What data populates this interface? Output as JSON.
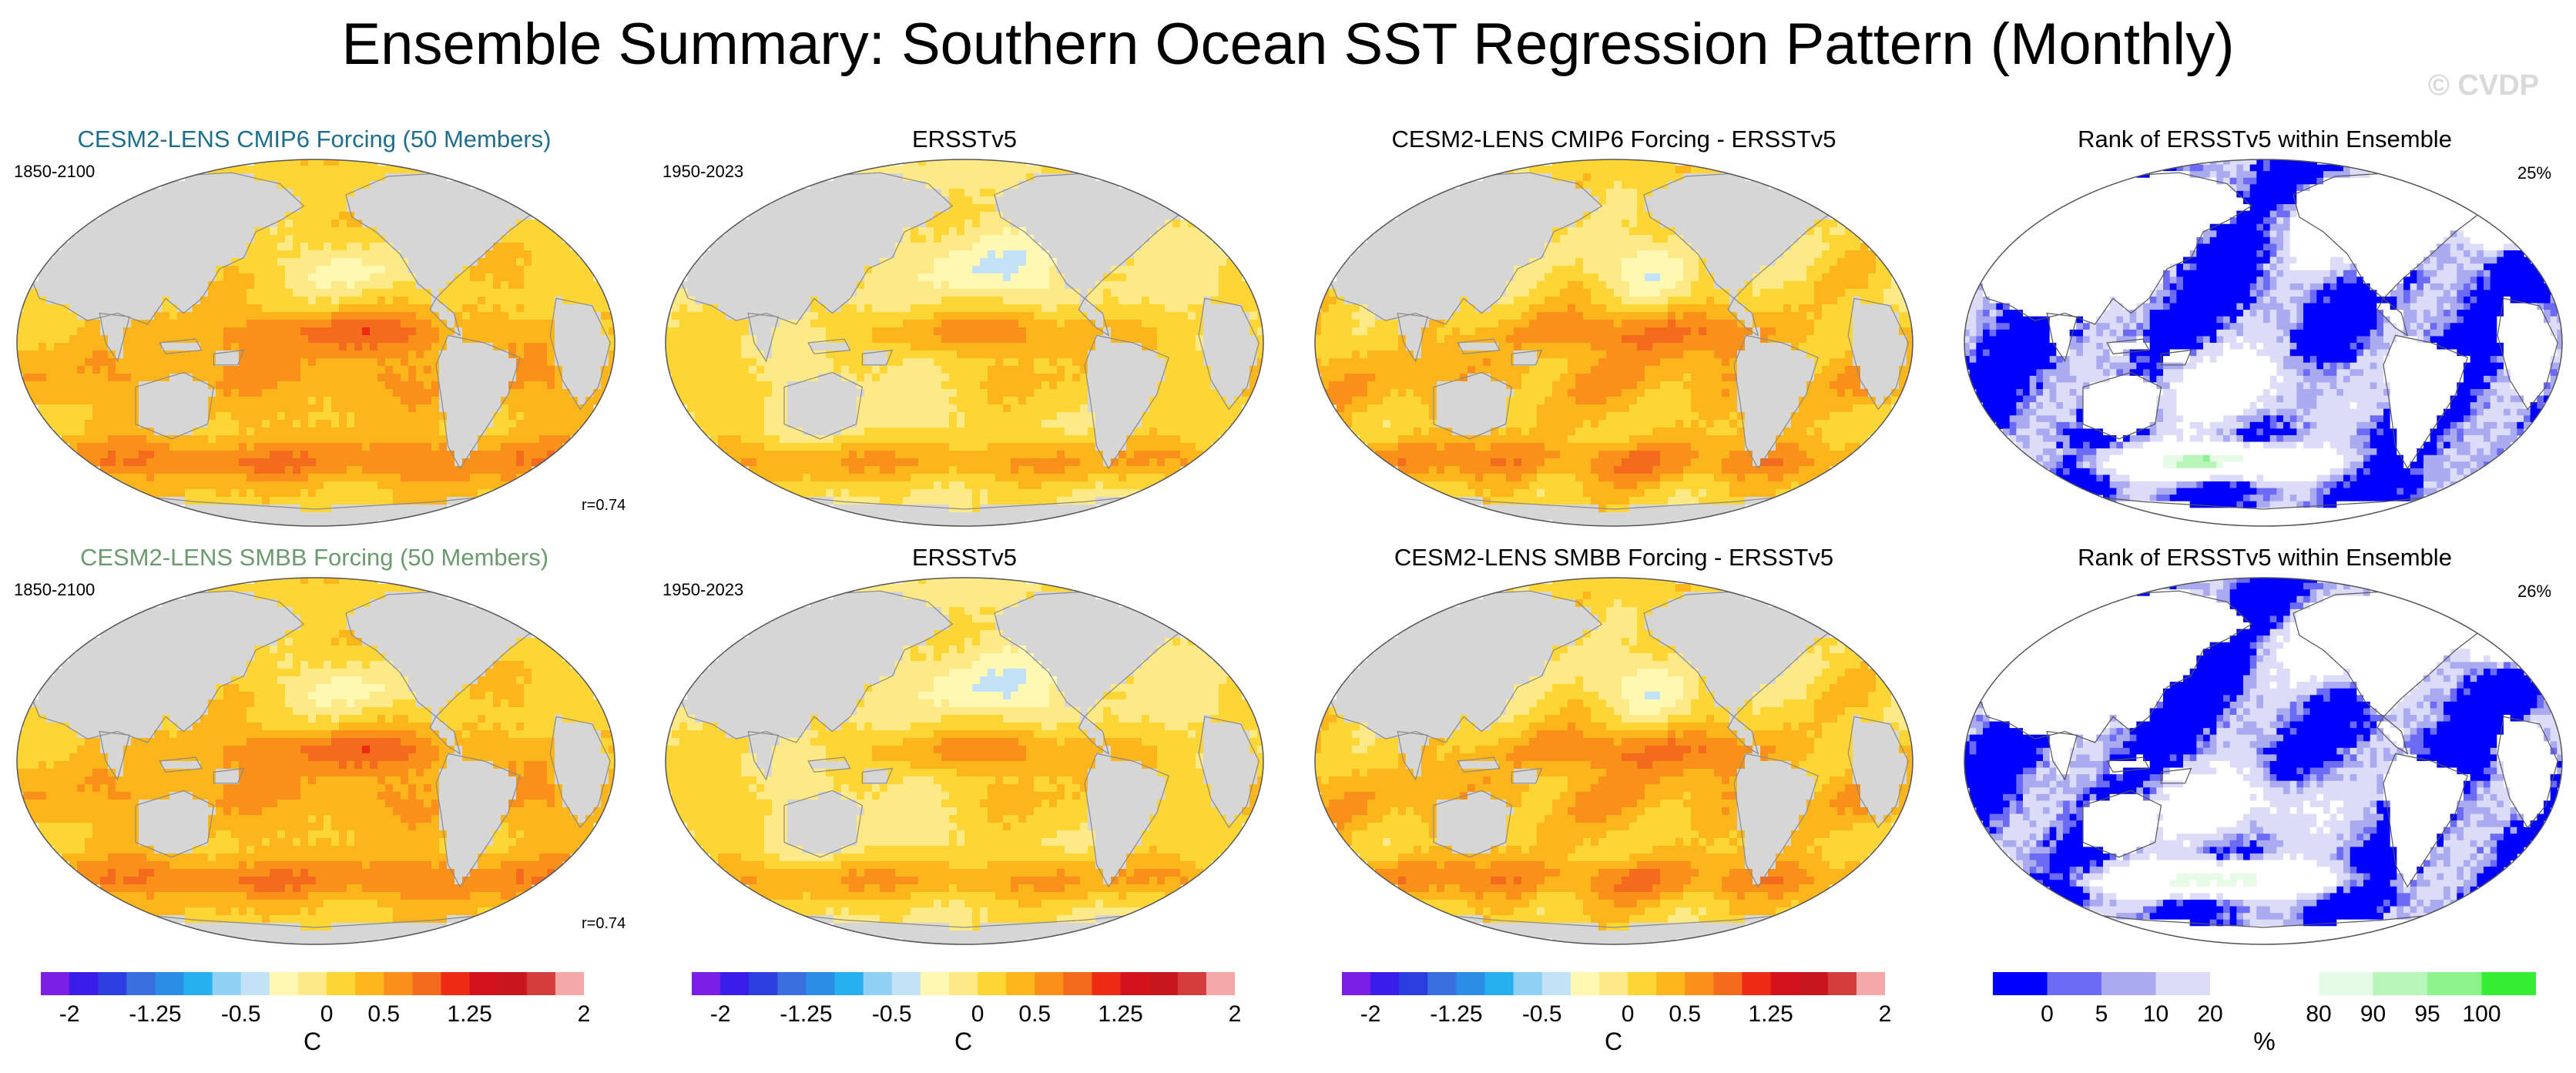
{
  "title": "Ensemble Summary: Southern Ocean SST Regression Pattern (Monthly)",
  "watermark": "© CVDP",
  "colors": {
    "land": "#d6d6d6",
    "coast": "#8a8a8a",
    "model_title_row1": "#1f6e8c",
    "model_title_row2": "#6a9a6e"
  },
  "rows": [
    {
      "panels": [
        {
          "kind": "model",
          "title": "CESM2-LENS CMIP6 Forcing (50 Members)",
          "period": "1850-2100",
          "corr": "r=0.74",
          "variant": 0
        },
        {
          "kind": "obs",
          "title": "ERSSTv5",
          "period": "1950-2023",
          "variant": 1
        },
        {
          "kind": "diff",
          "title": "CESM2-LENS CMIP6 Forcing - ERSSTv5",
          "variant": 2
        },
        {
          "kind": "rank",
          "title": "Rank of ERSSTv5 within Ensemble",
          "pct": "25%",
          "variant": 3
        }
      ]
    },
    {
      "panels": [
        {
          "kind": "model",
          "title": "CESM2-LENS SMBB Forcing (50 Members)",
          "period": "1850-2100",
          "corr": "r=0.74",
          "variant": 0
        },
        {
          "kind": "obs",
          "title": "ERSSTv5",
          "period": "1950-2023",
          "variant": 1
        },
        {
          "kind": "diff",
          "title": "CESM2-LENS SMBB Forcing - ERSSTv5",
          "variant": 2
        },
        {
          "kind": "rank",
          "title": "Rank of ERSSTv5 within Ensemble",
          "pct": "26%",
          "variant": 4
        }
      ]
    }
  ],
  "colorbars": {
    "sst": {
      "colors": [
        "#7b1fe6",
        "#3a1de8",
        "#2b3ee0",
        "#3a6fe0",
        "#2c8de6",
        "#26b0f0",
        "#8fd0f4",
        "#c2e3f7",
        "#fff8b3",
        "#fde985",
        "#fdd535",
        "#fcb51b",
        "#f9901a",
        "#f46b1e",
        "#ee2a14",
        "#d4121c",
        "#c8161e",
        "#d43c3c",
        "#f4a8a8"
      ],
      "tick_labels": [
        "-2",
        "-1.25",
        "-0.5",
        "0",
        "0.5",
        "1.25",
        "2"
      ],
      "tick_values": [
        -2,
        -1.25,
        -0.5,
        0,
        0.5,
        1.25,
        2
      ],
      "units": "C"
    },
    "rank": {
      "colors": [
        "#0000ff",
        "#6b6bf5",
        "#aaaaf0",
        "#dcdcf8",
        "#ffffff",
        "#ffffff",
        "#e6fbe6",
        "#b8f5b8",
        "#8cf28c",
        "#33ee33"
      ],
      "tick_labels": [
        "0",
        "5",
        "10",
        "20",
        "80",
        "90",
        "95",
        "100"
      ],
      "units": "%"
    }
  },
  "chart_data": [
    {
      "type": "heatmap",
      "title": "CESM2-LENS CMIP6 Forcing (50 Members)",
      "period": "1850-2100",
      "pattern_correlation": 0.74,
      "units": "C",
      "range": [
        -2,
        2
      ]
    },
    {
      "type": "heatmap",
      "title": "ERSSTv5",
      "period": "1950-2023",
      "units": "C",
      "range": [
        -2,
        2
      ]
    },
    {
      "type": "heatmap",
      "title": "CESM2-LENS CMIP6 Forcing - ERSSTv5",
      "units": "C",
      "range": [
        -2,
        2
      ]
    },
    {
      "type": "heatmap",
      "title": "Rank of ERSSTv5 within Ensemble",
      "area_percent": 25,
      "units": "%",
      "range": [
        0,
        100
      ]
    },
    {
      "type": "heatmap",
      "title": "CESM2-LENS SMBB Forcing (50 Members)",
      "period": "1850-2100",
      "pattern_correlation": 0.74,
      "units": "C",
      "range": [
        -2,
        2
      ]
    },
    {
      "type": "heatmap",
      "title": "ERSSTv5",
      "period": "1950-2023",
      "units": "C",
      "range": [
        -2,
        2
      ]
    },
    {
      "type": "heatmap",
      "title": "CESM2-LENS SMBB Forcing - ERSSTv5",
      "units": "C",
      "range": [
        -2,
        2
      ]
    },
    {
      "type": "heatmap",
      "title": "Rank of ERSSTv5 within Ensemble",
      "area_percent": 26,
      "units": "%",
      "range": [
        0,
        100
      ]
    }
  ]
}
